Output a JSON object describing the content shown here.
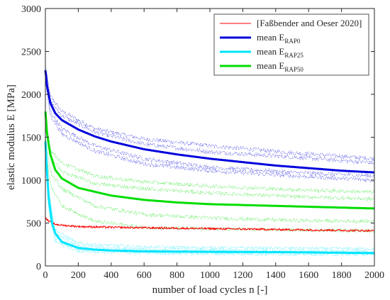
{
  "chart_data": {
    "type": "line",
    "xlabel": "number of load cycles n [-]",
    "ylabel": "elastic modulus E [MPa]",
    "xlim": [
      0,
      2000
    ],
    "ylim": [
      0,
      3000
    ],
    "xticks": [
      0,
      200,
      400,
      600,
      800,
      1000,
      1200,
      1400,
      1600,
      1800,
      2000
    ],
    "yticks": [
      0,
      500,
      1000,
      1500,
      2000,
      2500,
      3000
    ],
    "xtick_labels": [
      "0",
      "200",
      "400",
      "600",
      "800",
      "1000",
      "1200",
      "1400",
      "1600",
      "1800",
      "2000"
    ],
    "ytick_labels": [
      "0",
      "500",
      "1000",
      "1500",
      "2000",
      "2500",
      "3000"
    ],
    "grid": false,
    "legend_position": "top-right",
    "legend": [
      {
        "text": "[Faßbender and Oeser 2020]",
        "sub": "",
        "color": "#ff0000"
      },
      {
        "text": "mean E",
        "sub": "RAP0",
        "color": "#0000dd"
      },
      {
        "text": "mean E",
        "sub": "RAP25",
        "color": "#00e5ff"
      },
      {
        "text": "mean E",
        "sub": "RAP50",
        "color": "#00dd00"
      }
    ],
    "series": [
      {
        "key": "reference",
        "color": "#ff0000",
        "width": 1,
        "noise": 12,
        "points": [
          [
            0,
            560
          ],
          [
            20,
            520
          ],
          [
            50,
            490
          ],
          [
            100,
            475
          ],
          [
            200,
            460
          ],
          [
            400,
            450
          ],
          [
            800,
            440
          ],
          [
            1200,
            430
          ],
          [
            1600,
            420
          ],
          [
            2000,
            410
          ]
        ]
      },
      {
        "key": "RAP0_mean",
        "color": "#0000dd",
        "width": 3,
        "noise": 0,
        "points": [
          [
            0,
            2280
          ],
          [
            10,
            2100
          ],
          [
            30,
            1900
          ],
          [
            60,
            1780
          ],
          [
            100,
            1700
          ],
          [
            200,
            1590
          ],
          [
            300,
            1510
          ],
          [
            400,
            1450
          ],
          [
            600,
            1360
          ],
          [
            800,
            1300
          ],
          [
            1000,
            1250
          ],
          [
            1200,
            1210
          ],
          [
            1400,
            1170
          ],
          [
            1600,
            1140
          ],
          [
            1800,
            1110
          ],
          [
            2000,
            1090
          ]
        ]
      },
      {
        "key": "RAP25_mean",
        "color": "#00e5ff",
        "width": 3,
        "noise": 0,
        "points": [
          [
            0,
            1450
          ],
          [
            10,
            1100
          ],
          [
            20,
            800
          ],
          [
            40,
            500
          ],
          [
            60,
            380
          ],
          [
            100,
            280
          ],
          [
            200,
            210
          ],
          [
            300,
            190
          ],
          [
            400,
            180
          ],
          [
            600,
            170
          ],
          [
            1000,
            165
          ],
          [
            1500,
            160
          ],
          [
            2000,
            150
          ]
        ]
      },
      {
        "key": "RAP50_mean",
        "color": "#00dd00",
        "width": 3,
        "noise": 0,
        "points": [
          [
            0,
            1800
          ],
          [
            10,
            1550
          ],
          [
            30,
            1300
          ],
          [
            60,
            1120
          ],
          [
            100,
            1020
          ],
          [
            200,
            910
          ],
          [
            400,
            820
          ],
          [
            600,
            770
          ],
          [
            800,
            740
          ],
          [
            1000,
            720
          ],
          [
            1200,
            710
          ],
          [
            1400,
            700
          ],
          [
            1600,
            690
          ],
          [
            1800,
            680
          ],
          [
            2000,
            670
          ]
        ]
      }
    ],
    "replicate_series": [
      {
        "group": "RAP0",
        "color": "#0000dd",
        "noise": 25,
        "points": [
          [
            0,
            2330
          ],
          [
            30,
            1980
          ],
          [
            100,
            1800
          ],
          [
            300,
            1600
          ],
          [
            600,
            1480
          ],
          [
            1000,
            1400
          ],
          [
            1500,
            1320
          ],
          [
            2000,
            1250
          ]
        ]
      },
      {
        "group": "RAP0",
        "color": "#0000dd",
        "noise": 25,
        "points": [
          [
            0,
            2250
          ],
          [
            30,
            1920
          ],
          [
            100,
            1750
          ],
          [
            300,
            1560
          ],
          [
            600,
            1420
          ],
          [
            1000,
            1330
          ],
          [
            1500,
            1270
          ],
          [
            2000,
            1200
          ]
        ]
      },
      {
        "group": "RAP0",
        "color": "#0000dd",
        "noise": 25,
        "points": [
          [
            0,
            2200
          ],
          [
            30,
            1800
          ],
          [
            100,
            1600
          ],
          [
            300,
            1400
          ],
          [
            600,
            1250
          ],
          [
            1000,
            1150
          ],
          [
            1500,
            1090
          ],
          [
            2000,
            1050
          ]
        ]
      },
      {
        "group": "RAP0",
        "color": "#0000dd",
        "noise": 25,
        "points": [
          [
            0,
            2150
          ],
          [
            30,
            1760
          ],
          [
            100,
            1540
          ],
          [
            300,
            1340
          ],
          [
            600,
            1190
          ],
          [
            1000,
            1110
          ],
          [
            1500,
            1050
          ],
          [
            2000,
            1000
          ]
        ]
      },
      {
        "group": "RAP25",
        "color": "#00e5ff",
        "noise": 18,
        "points": [
          [
            0,
            1560
          ],
          [
            20,
            900
          ],
          [
            60,
            420
          ],
          [
            200,
            260
          ],
          [
            600,
            220
          ],
          [
            1200,
            210
          ],
          [
            2000,
            200
          ]
        ]
      },
      {
        "group": "RAP25",
        "color": "#00e5ff",
        "noise": 18,
        "points": [
          [
            0,
            1500
          ],
          [
            20,
            820
          ],
          [
            60,
            380
          ],
          [
            200,
            230
          ],
          [
            600,
            190
          ],
          [
            1200,
            180
          ],
          [
            2000,
            170
          ]
        ]
      },
      {
        "group": "RAP25",
        "color": "#00e5ff",
        "noise": 18,
        "points": [
          [
            0,
            1380
          ],
          [
            20,
            700
          ],
          [
            60,
            330
          ],
          [
            200,
            200
          ],
          [
            600,
            170
          ],
          [
            1200,
            160
          ],
          [
            2000,
            150
          ]
        ]
      },
      {
        "group": "RAP25",
        "color": "#00e5ff",
        "noise": 18,
        "points": [
          [
            0,
            1300
          ],
          [
            20,
            640
          ],
          [
            60,
            290
          ],
          [
            200,
            170
          ],
          [
            600,
            150
          ],
          [
            1200,
            140
          ],
          [
            2000,
            130
          ]
        ]
      },
      {
        "group": "RAP50",
        "color": "#00dd00",
        "noise": 22,
        "points": [
          [
            0,
            1650
          ],
          [
            30,
            1350
          ],
          [
            100,
            1200
          ],
          [
            300,
            1050
          ],
          [
            600,
            980
          ],
          [
            1000,
            930
          ],
          [
            1500,
            890
          ],
          [
            2000,
            860
          ]
        ]
      },
      {
        "group": "RAP50",
        "color": "#00dd00",
        "noise": 22,
        "points": [
          [
            0,
            1600
          ],
          [
            30,
            1280
          ],
          [
            100,
            1100
          ],
          [
            300,
            960
          ],
          [
            600,
            900
          ],
          [
            1000,
            850
          ],
          [
            1500,
            810
          ],
          [
            2000,
            780
          ]
        ]
      },
      {
        "group": "RAP50",
        "color": "#00dd00",
        "noise": 22,
        "points": [
          [
            0,
            1500
          ],
          [
            30,
            1100
          ],
          [
            100,
            900
          ],
          [
            300,
            700
          ],
          [
            600,
            600
          ],
          [
            1000,
            560
          ],
          [
            1500,
            530
          ],
          [
            2000,
            520
          ]
        ]
      },
      {
        "group": "RAP50",
        "color": "#00dd00",
        "noise": 22,
        "points": [
          [
            0,
            1400
          ],
          [
            30,
            950
          ],
          [
            100,
            700
          ],
          [
            300,
            520
          ],
          [
            600,
            450
          ],
          [
            1000,
            430
          ],
          [
            1500,
            420
          ],
          [
            2000,
            410
          ]
        ]
      }
    ]
  }
}
